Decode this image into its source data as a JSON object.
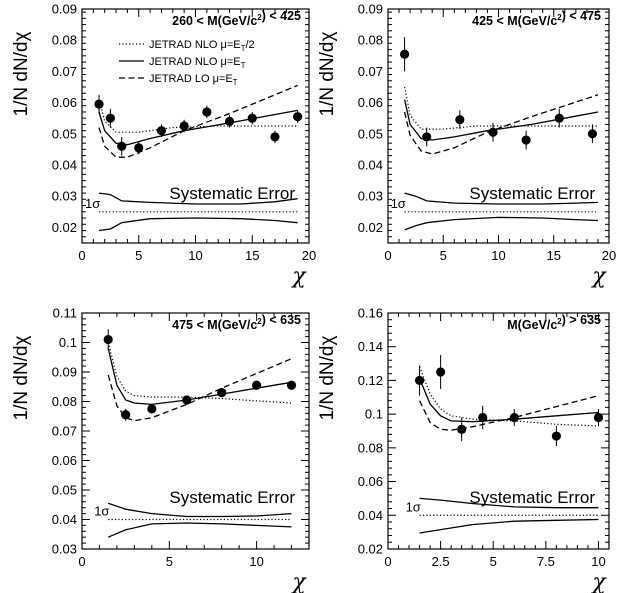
{
  "chart_data": [
    {
      "type": "scatter",
      "mass_label": "260 < M(GeV/c²) < 425",
      "ylabel": "1/N dN/dχ",
      "xlabel": "χ",
      "xlim": [
        0,
        20
      ],
      "ylim": [
        0.015,
        0.09
      ],
      "xticks": [
        0,
        5,
        10,
        15,
        20
      ],
      "yticks": [
        0.02,
        0.03,
        0.04,
        0.05,
        0.06,
        0.07,
        0.08,
        0.09
      ],
      "ytick_labels": [
        "0.02",
        "0.03",
        "0.04",
        "0.05",
        "0.06",
        "0.07",
        "0.08",
        "0.09"
      ],
      "legend": [
        {
          "label": "JETRAD NLO μ=E_T/2",
          "style": "dotted"
        },
        {
          "label": "JETRAD NLO μ=E_T",
          "style": "solid"
        },
        {
          "label": "JETRAD LO μ=E_T",
          "style": "dashed"
        }
      ],
      "points": [
        {
          "x": 1.5,
          "y": 0.0595,
          "err": 0.003
        },
        {
          "x": 2.5,
          "y": 0.055,
          "err": 0.003
        },
        {
          "x": 3.5,
          "y": 0.046,
          "err": 0.003
        },
        {
          "x": 5.0,
          "y": 0.0455,
          "err": 0.002
        },
        {
          "x": 7.0,
          "y": 0.051,
          "err": 0.002
        },
        {
          "x": 9.0,
          "y": 0.0525,
          "err": 0.002
        },
        {
          "x": 11.0,
          "y": 0.057,
          "err": 0.002
        },
        {
          "x": 13.0,
          "y": 0.054,
          "err": 0.002
        },
        {
          "x": 15.0,
          "y": 0.055,
          "err": 0.002
        },
        {
          "x": 17.0,
          "y": 0.049,
          "err": 0.002
        },
        {
          "x": 19.0,
          "y": 0.0555,
          "err": 0.002
        }
      ],
      "curves": [
        {
          "style": "dotted",
          "points": [
            [
              1.5,
              0.061
            ],
            [
              2,
              0.054
            ],
            [
              3,
              0.0505
            ],
            [
              5,
              0.0505
            ],
            [
              8,
              0.052
            ],
            [
              12,
              0.0525
            ],
            [
              16,
              0.0525
            ],
            [
              19,
              0.0525
            ]
          ]
        },
        {
          "style": "solid",
          "points": [
            [
              1.5,
              0.057
            ],
            [
              2,
              0.051
            ],
            [
              3,
              0.047
            ],
            [
              4,
              0.0465
            ],
            [
              6,
              0.0485
            ],
            [
              9,
              0.051
            ],
            [
              13,
              0.0535
            ],
            [
              16,
              0.0555
            ],
            [
              19,
              0.0575
            ]
          ]
        },
        {
          "style": "dashed",
          "points": [
            [
              1.5,
              0.052
            ],
            [
              2,
              0.046
            ],
            [
              3,
              0.0425
            ],
            [
              4,
              0.0425
            ],
            [
              6,
              0.0455
            ],
            [
              9,
              0.051
            ],
            [
              13,
              0.0565
            ],
            [
              16,
              0.061
            ],
            [
              19,
              0.0655
            ]
          ]
        }
      ],
      "systematic_label": "Systematic Error",
      "sigma_label": "1σ",
      "sys_band": {
        "center": 0.025,
        "upper": [
          [
            1.5,
            0.031
          ],
          [
            2.5,
            0.0305
          ],
          [
            3.5,
            0.0285
          ],
          [
            6,
            0.028
          ],
          [
            10,
            0.0275
          ],
          [
            14,
            0.0275
          ],
          [
            17,
            0.0282
          ],
          [
            19,
            0.0292
          ]
        ],
        "lower": [
          [
            1.5,
            0.019
          ],
          [
            2.5,
            0.0195
          ],
          [
            3.5,
            0.0215
          ],
          [
            6,
            0.0228
          ],
          [
            10,
            0.023
          ],
          [
            14,
            0.0228
          ],
          [
            17,
            0.0222
          ],
          [
            19,
            0.0215
          ]
        ]
      }
    },
    {
      "type": "scatter",
      "mass_label": "425 < M(GeV/c²) < 475",
      "ylabel": "1/N dN/dχ",
      "xlabel": "χ",
      "xlim": [
        0,
        20
      ],
      "ylim": [
        0.015,
        0.09
      ],
      "xticks": [
        0,
        5,
        10,
        15,
        20
      ],
      "yticks": [
        0.02,
        0.03,
        0.04,
        0.05,
        0.06,
        0.07,
        0.08,
        0.09
      ],
      "ytick_labels": [
        "0.02",
        "0.03",
        "0.04",
        "0.05",
        "0.06",
        "0.07",
        "0.08",
        "0.09"
      ],
      "points": [
        {
          "x": 1.5,
          "y": 0.0755,
          "err": 0.0055
        },
        {
          "x": 3.5,
          "y": 0.049,
          "err": 0.003
        },
        {
          "x": 6.5,
          "y": 0.0545,
          "err": 0.003
        },
        {
          "x": 9.5,
          "y": 0.0505,
          "err": 0.003
        },
        {
          "x": 12.5,
          "y": 0.048,
          "err": 0.003
        },
        {
          "x": 15.5,
          "y": 0.055,
          "err": 0.003
        },
        {
          "x": 18.5,
          "y": 0.05,
          "err": 0.003
        }
      ],
      "curves": [
        {
          "style": "dotted",
          "points": [
            [
              1.5,
              0.065
            ],
            [
              2,
              0.056
            ],
            [
              3,
              0.0515
            ],
            [
              5,
              0.0515
            ],
            [
              8,
              0.0525
            ],
            [
              12,
              0.0525
            ],
            [
              16,
              0.0525
            ],
            [
              19,
              0.0525
            ]
          ]
        },
        {
          "style": "solid",
          "points": [
            [
              1.5,
              0.061
            ],
            [
              2,
              0.053
            ],
            [
              3,
              0.0485
            ],
            [
              4,
              0.048
            ],
            [
              6,
              0.049
            ],
            [
              9,
              0.051
            ],
            [
              13,
              0.053
            ],
            [
              16,
              0.055
            ],
            [
              19,
              0.057
            ]
          ]
        },
        {
          "style": "dashed",
          "points": [
            [
              1.5,
              0.057
            ],
            [
              2,
              0.0495
            ],
            [
              3,
              0.0445
            ],
            [
              4,
              0.0435
            ],
            [
              6,
              0.0455
            ],
            [
              9,
              0.0505
            ],
            [
              13,
              0.0555
            ],
            [
              16,
              0.059
            ],
            [
              19,
              0.0625
            ]
          ]
        }
      ],
      "systematic_label": "Systematic Error",
      "sigma_label": "1σ",
      "sys_band": {
        "center": 0.025,
        "upper": [
          [
            1.5,
            0.031
          ],
          [
            2.5,
            0.03
          ],
          [
            3.5,
            0.0285
          ],
          [
            6,
            0.0278
          ],
          [
            10,
            0.0275
          ],
          [
            14,
            0.0275
          ],
          [
            17,
            0.0278
          ],
          [
            19,
            0.028
          ]
        ],
        "lower": [
          [
            1.5,
            0.0192
          ],
          [
            2.5,
            0.0205
          ],
          [
            3.5,
            0.0215
          ],
          [
            6,
            0.0225
          ],
          [
            10,
            0.0232
          ],
          [
            14,
            0.023
          ],
          [
            17,
            0.0225
          ],
          [
            19,
            0.0222
          ]
        ]
      }
    },
    {
      "type": "scatter",
      "mass_label": "475 < M(GeV/c²) < 635",
      "ylabel": "1/N dN/dχ",
      "xlabel": "χ",
      "xlim": [
        0,
        13
      ],
      "ylim": [
        0.03,
        0.11
      ],
      "xticks": [
        0,
        5,
        10
      ],
      "yticks": [
        0.03,
        0.04,
        0.05,
        0.06,
        0.07,
        0.08,
        0.09,
        0.1,
        0.11
      ],
      "ytick_labels": [
        "0.03",
        "0.04",
        "0.05",
        "0.06",
        "0.07",
        "0.08",
        "0.09",
        "0.1",
        "0.11"
      ],
      "points": [
        {
          "x": 1.5,
          "y": 0.101,
          "err": 0.0035
        },
        {
          "x": 2.5,
          "y": 0.0755,
          "err": 0.002
        },
        {
          "x": 4.0,
          "y": 0.0775,
          "err": 0.0015
        },
        {
          "x": 6.0,
          "y": 0.0805,
          "err": 0.0015
        },
        {
          "x": 8.0,
          "y": 0.083,
          "err": 0.0015
        },
        {
          "x": 10.0,
          "y": 0.0855,
          "err": 0.0015
        },
        {
          "x": 12.0,
          "y": 0.0855,
          "err": 0.0015
        }
      ],
      "curves": [
        {
          "style": "dotted",
          "points": [
            [
              1.5,
              0.1
            ],
            [
              2,
              0.0885
            ],
            [
              2.5,
              0.0835
            ],
            [
              3,
              0.082
            ],
            [
              4,
              0.0815
            ],
            [
              6,
              0.0815
            ],
            [
              8,
              0.081
            ],
            [
              10,
              0.0802
            ],
            [
              12,
              0.0795
            ]
          ]
        },
        {
          "style": "solid",
          "points": [
            [
              1.5,
              0.098
            ],
            [
              2,
              0.0855
            ],
            [
              2.5,
              0.0805
            ],
            [
              3,
              0.0795
            ],
            [
              4,
              0.079
            ],
            [
              6,
              0.0805
            ],
            [
              8,
              0.0825
            ],
            [
              10,
              0.0845
            ],
            [
              12,
              0.0865
            ]
          ]
        },
        {
          "style": "dashed",
          "points": [
            [
              1.5,
              0.089
            ],
            [
              2,
              0.0785
            ],
            [
              2.5,
              0.0745
            ],
            [
              3,
              0.0735
            ],
            [
              4,
              0.0745
            ],
            [
              6,
              0.079
            ],
            [
              8,
              0.0845
            ],
            [
              10,
              0.0895
            ],
            [
              12,
              0.0945
            ]
          ]
        }
      ],
      "systematic_label": "Systematic Error",
      "sigma_label": "1σ",
      "sys_band": {
        "center": 0.04,
        "upper": [
          [
            1.5,
            0.0455
          ],
          [
            2.5,
            0.0435
          ],
          [
            4,
            0.042
          ],
          [
            6,
            0.041
          ],
          [
            8,
            0.041
          ],
          [
            10,
            0.0412
          ],
          [
            12,
            0.042
          ]
        ],
        "lower": [
          [
            1.5,
            0.034
          ],
          [
            2.5,
            0.0365
          ],
          [
            4,
            0.0385
          ],
          [
            6,
            0.0388
          ],
          [
            8,
            0.0385
          ],
          [
            10,
            0.038
          ],
          [
            12,
            0.0375
          ]
        ]
      }
    },
    {
      "type": "scatter",
      "mass_label": "M(GeV/c²) > 635",
      "ylabel": "1/N dN/dχ",
      "xlabel": "χ",
      "xlim": [
        0,
        10.5
      ],
      "ylim": [
        0.02,
        0.16
      ],
      "xticks": [
        0,
        2.5,
        5,
        7.5,
        10
      ],
      "yticks": [
        0.02,
        0.04,
        0.06,
        0.08,
        0.1,
        0.12,
        0.14,
        0.16
      ],
      "ytick_labels": [
        "0.02",
        "0.04",
        "0.06",
        "0.08",
        "0.1",
        "0.12",
        "0.14",
        "0.16"
      ],
      "points": [
        {
          "x": 1.5,
          "y": 0.12,
          "err": 0.009
        },
        {
          "x": 2.5,
          "y": 0.125,
          "err": 0.01
        },
        {
          "x": 3.5,
          "y": 0.091,
          "err": 0.007
        },
        {
          "x": 4.5,
          "y": 0.098,
          "err": 0.007
        },
        {
          "x": 6.0,
          "y": 0.098,
          "err": 0.005
        },
        {
          "x": 8.0,
          "y": 0.087,
          "err": 0.006
        },
        {
          "x": 10.0,
          "y": 0.098,
          "err": 0.005
        }
      ],
      "curves": [
        {
          "style": "dotted",
          "points": [
            [
              1.5,
              0.128
            ],
            [
              2,
              0.112
            ],
            [
              2.5,
              0.103
            ],
            [
              3,
              0.099
            ],
            [
              4,
              0.097
            ],
            [
              6,
              0.096
            ],
            [
              8,
              0.094
            ],
            [
              10,
              0.093
            ]
          ]
        },
        {
          "style": "solid",
          "points": [
            [
              1.5,
              0.121
            ],
            [
              2,
              0.106
            ],
            [
              2.5,
              0.099
            ],
            [
              3,
              0.096
            ],
            [
              4,
              0.0955
            ],
            [
              6,
              0.097
            ],
            [
              8,
              0.099
            ],
            [
              10,
              0.101
            ]
          ]
        },
        {
          "style": "dashed",
          "points": [
            [
              1.5,
              0.108
            ],
            [
              2,
              0.095
            ],
            [
              2.5,
              0.091
            ],
            [
              3,
              0.0905
            ],
            [
              4,
              0.0925
            ],
            [
              6,
              0.098
            ],
            [
              8,
              0.1045
            ],
            [
              10,
              0.111
            ]
          ]
        }
      ],
      "systematic_label": "Systematic Error",
      "sigma_label": "1σ",
      "sys_band": {
        "center": 0.04,
        "upper": [
          [
            1.5,
            0.05
          ],
          [
            2.5,
            0.049
          ],
          [
            4,
            0.047
          ],
          [
            6,
            0.045
          ],
          [
            8,
            0.0445
          ],
          [
            10,
            0.0445
          ]
        ],
        "lower": [
          [
            1.5,
            0.0295
          ],
          [
            2.5,
            0.0315
          ],
          [
            4,
            0.0345
          ],
          [
            6,
            0.0365
          ],
          [
            8,
            0.037
          ],
          [
            10,
            0.0375
          ]
        ]
      }
    }
  ]
}
